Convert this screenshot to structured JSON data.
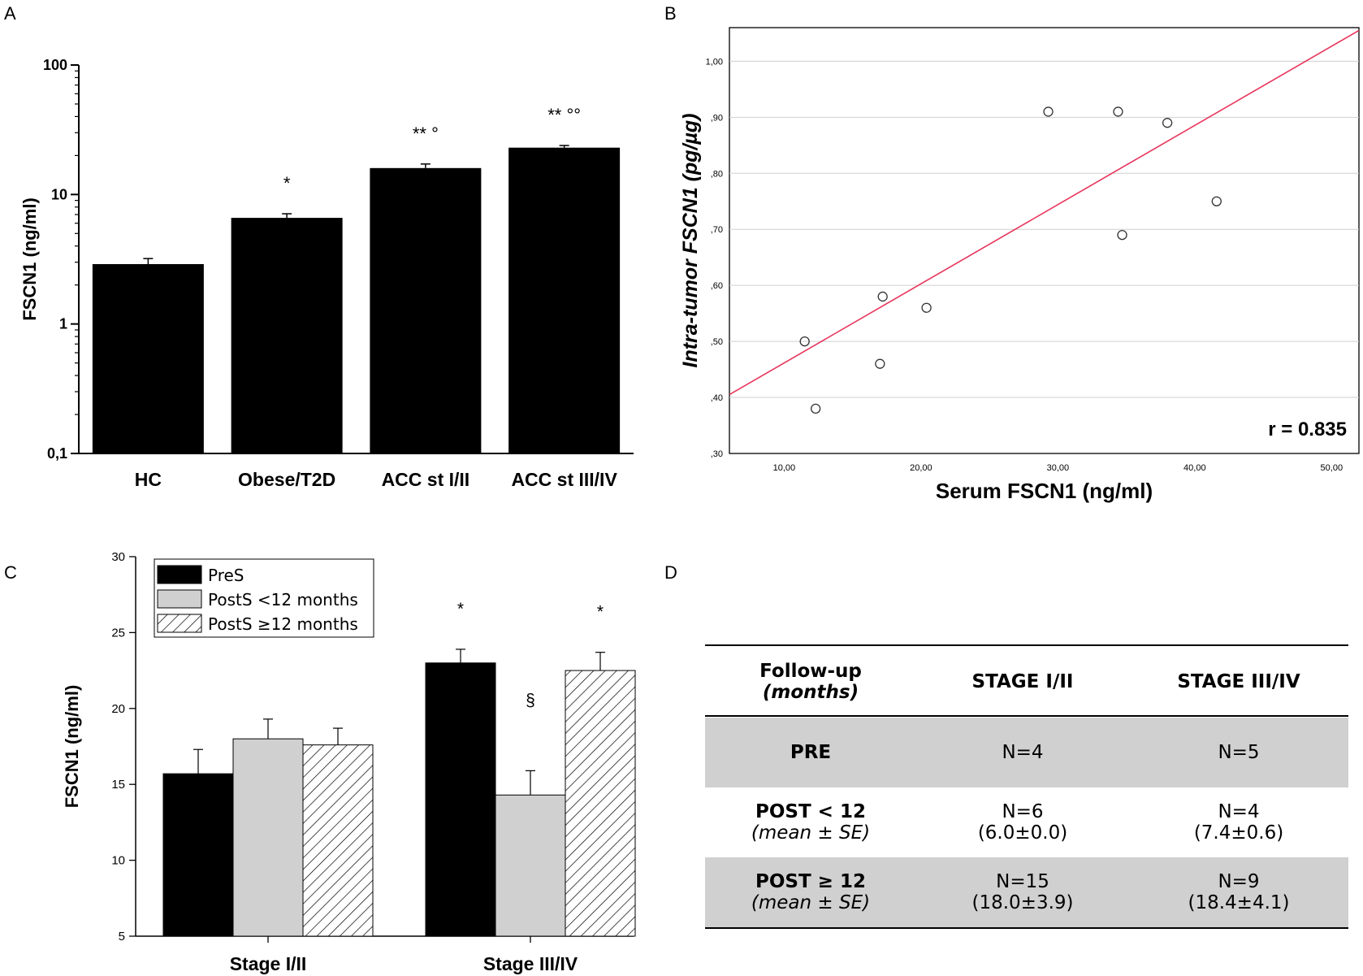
{
  "panels": {
    "A": "A",
    "B": "B",
    "C": "C",
    "D": "D"
  },
  "chart_data": [
    {
      "panel": "A",
      "type": "bar",
      "ylabel": "FSCN1 (ng/ml)",
      "yscale": "log",
      "ylim": [
        0.1,
        100
      ],
      "yticks": [
        "0,1",
        "1",
        "10",
        "100"
      ],
      "categories": [
        "HC",
        "Obese/T2D",
        "ACC st I/II",
        "ACC st III/IV"
      ],
      "values": [
        2.9,
        6.6,
        16.0,
        23.0
      ],
      "errors": [
        0.3,
        0.5,
        1.2,
        0.9
      ],
      "annotations": [
        "",
        "*",
        "** °",
        "** °°"
      ],
      "color": "#000000"
    },
    {
      "panel": "B",
      "type": "scatter",
      "xlabel": "Serum FSCN1 (ng/ml)",
      "ylabel": "Intra-tumor FSCN1 (pg/µg)",
      "xlim": [
        6,
        52
      ],
      "ylim": [
        0.3,
        1.06
      ],
      "xticks": [
        10,
        20,
        30,
        40,
        50
      ],
      "xtick_labels": [
        "10,00",
        "20,00",
        "30,00",
        "40,00",
        "50,00"
      ],
      "yticks": [
        0.3,
        0.4,
        0.5,
        0.6,
        0.7,
        0.8,
        0.9,
        1.0
      ],
      "ytick_labels": [
        ",30",
        ",40",
        ",50",
        ",60",
        ",70",
        ",80",
        ",90",
        "1,00"
      ],
      "points": [
        [
          11.5,
          0.5
        ],
        [
          12.3,
          0.38
        ],
        [
          17.0,
          0.46
        ],
        [
          17.2,
          0.58
        ],
        [
          20.4,
          0.56
        ],
        [
          29.3,
          0.91
        ],
        [
          34.4,
          0.91
        ],
        [
          34.7,
          0.69
        ],
        [
          38.0,
          0.89
        ],
        [
          41.6,
          0.75
        ]
      ],
      "fit_line": {
        "x": [
          6,
          52
        ],
        "y": [
          0.405,
          1.055
        ]
      },
      "fit_color": "#e8365d",
      "annotation": "r = 0.835"
    },
    {
      "panel": "C",
      "type": "bar",
      "ylabel": "FSCN1 (ng/ml)",
      "ylim": [
        5,
        30
      ],
      "yticks": [
        5,
        10,
        15,
        20,
        25,
        30
      ],
      "categories": [
        "Stage I/II",
        "Stage III/IV"
      ],
      "series": [
        {
          "name": "PreS",
          "values": [
            15.7,
            23.0
          ],
          "errors": [
            1.6,
            0.9
          ],
          "fill": "#000000"
        },
        {
          "name": "PostS <12 months",
          "values": [
            18.0,
            14.3
          ],
          "errors": [
            1.3,
            1.6
          ],
          "fill": "#d0d0d0"
        },
        {
          "name": "PostS ≥12 months",
          "values": [
            17.6,
            22.5
          ],
          "errors": [
            1.1,
            1.2
          ],
          "fill": "hatch"
        }
      ],
      "annotations": [
        [
          "",
          "",
          ""
        ],
        [
          "*",
          "§",
          "*"
        ]
      ]
    },
    {
      "panel": "D",
      "type": "table",
      "header": {
        "col1": "Follow-up",
        "col1_sub": "(months)",
        "col2": "STAGE I/II",
        "col3": "STAGE III/IV"
      },
      "rows": [
        {
          "label": "PRE",
          "sub": "",
          "c2": "N=4",
          "c2_sub": "",
          "c3": "N=5",
          "c3_sub": ""
        },
        {
          "label": "POST < 12",
          "sub": "(mean ± SE)",
          "c2": "N=6",
          "c2_sub": "(6.0±0.0)",
          "c3": "N=4",
          "c3_sub": "(7.4±0.6)"
        },
        {
          "label": "POST ≥ 12",
          "sub": "(mean ± SE)",
          "c2": "N=15",
          "c2_sub": "(18.0±3.9)",
          "c3": "N=9",
          "c3_sub": "(18.4±4.1)"
        }
      ]
    }
  ]
}
